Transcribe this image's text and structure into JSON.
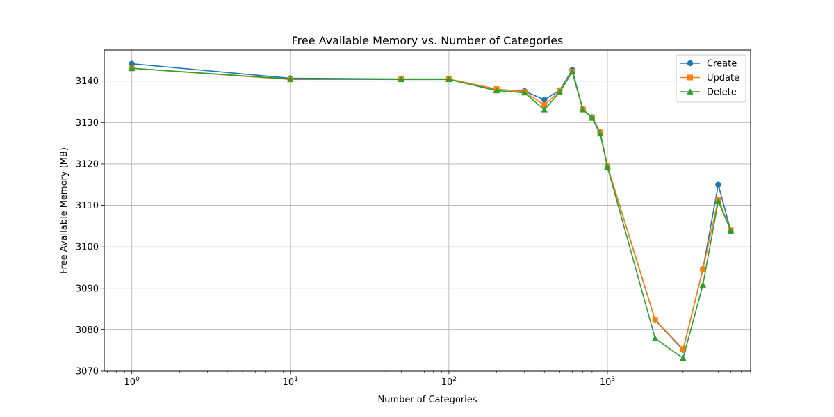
{
  "chart_data": {
    "type": "line",
    "title": "Free Available Memory vs. Number of Categories",
    "xlabel": "Number of Categories",
    "ylabel": "Free Available Memory (MB)",
    "xscale": "log",
    "xlim": [
      0.67,
      8000
    ],
    "ylim": [
      3070,
      3147.5
    ],
    "grid": true,
    "legend_position": "top-right",
    "x_ticks": [
      {
        "value": 1,
        "base": "10",
        "exp": "0"
      },
      {
        "value": 10,
        "base": "10",
        "exp": "1"
      },
      {
        "value": 100,
        "base": "10",
        "exp": "2"
      },
      {
        "value": 1000,
        "base": "10",
        "exp": "3"
      }
    ],
    "y_ticks": [
      3070,
      3080,
      3090,
      3100,
      3110,
      3120,
      3130,
      3140
    ],
    "x": [
      1,
      10,
      50,
      100,
      200,
      300,
      400,
      500,
      600,
      700,
      800,
      900,
      1000,
      2000,
      3000,
      4000,
      5000,
      6000
    ],
    "series": [
      {
        "name": "Create",
        "color": "#1f77b4",
        "marker": "circle",
        "values": [
          3144.2,
          3140.7,
          3140.5,
          3140.5,
          3138.0,
          3137.6,
          3135.5,
          3137.8,
          3142.7,
          3133.2,
          3131.3,
          3127.7,
          3119.5,
          3082.3,
          3075.1,
          3094.6,
          3115.0,
          3103.8
        ]
      },
      {
        "name": "Update",
        "color": "#ff7f0e",
        "marker": "square",
        "values": [
          3143.1,
          3140.4,
          3140.5,
          3140.5,
          3138.1,
          3137.4,
          3134.2,
          3137.6,
          3142.3,
          3133.2,
          3131.2,
          3127.6,
          3119.5,
          3082.4,
          3075.3,
          3094.5,
          3111.4,
          3104.0
        ]
      },
      {
        "name": "Delete",
        "color": "#2ca02c",
        "marker": "triangle",
        "values": [
          3143.1,
          3140.5,
          3140.4,
          3140.4,
          3137.7,
          3137.2,
          3133.1,
          3137.3,
          3142.2,
          3133.1,
          3131.1,
          3127.3,
          3119.3,
          3077.9,
          3073.1,
          3090.8,
          3111.0,
          3103.9
        ]
      }
    ]
  }
}
